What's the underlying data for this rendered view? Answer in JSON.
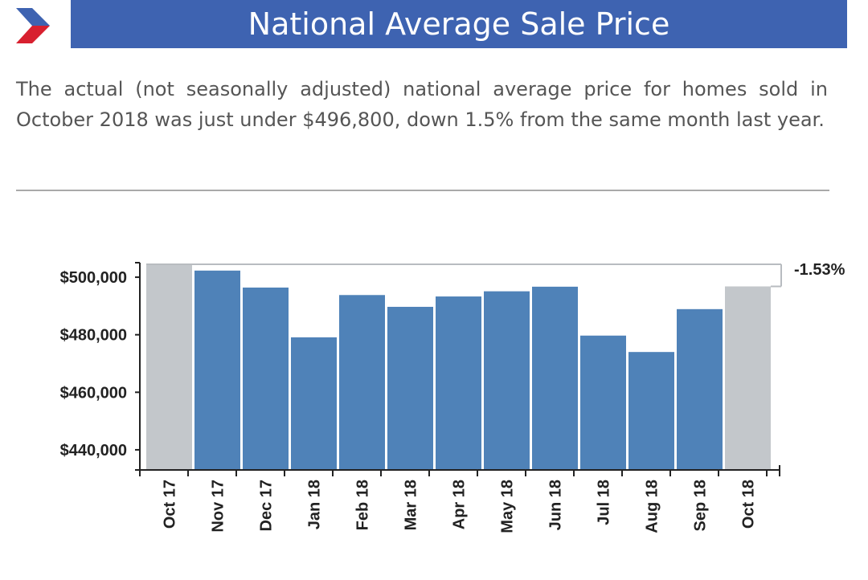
{
  "header": {
    "title": "National Average Sale Price",
    "logo_icon": "chevron-logo-icon",
    "bar_color": "#3e63b1"
  },
  "description": "The actual (not seasonally adjusted) national average price for homes sold in October 2018 was just under $496,800, down 1.5% from the same month last year.",
  "chart_data": {
    "type": "bar",
    "title": "National Average Sale Price",
    "categories": [
      "Oct 17",
      "Nov 17",
      "Dec 17",
      "Jan 18",
      "Feb 18",
      "Mar 18",
      "Apr 18",
      "May 18",
      "Jun 18",
      "Jul 18",
      "Aug 18",
      "Sep 18",
      "Oct 18"
    ],
    "values": [
      504500,
      502300,
      496400,
      479100,
      493800,
      489700,
      493300,
      495100,
      496700,
      479700,
      474000,
      488900,
      496800
    ],
    "highlight_categories": [
      "Oct 17",
      "Oct 18"
    ],
    "colors": {
      "bar": "#4f82b8",
      "highlight": "#c3c7cb",
      "axis": "#222222"
    },
    "ylim": [
      433000,
      507000
    ],
    "yticks": [
      500000,
      480000,
      460000,
      440000
    ],
    "ytick_labels": [
      "$500,000",
      "$480,000",
      "$460,000",
      "$440,000"
    ],
    "xlabel": "",
    "ylabel": "",
    "annotation": {
      "text": "-1.53%",
      "from": "Oct 17",
      "to": "Oct 18"
    }
  }
}
